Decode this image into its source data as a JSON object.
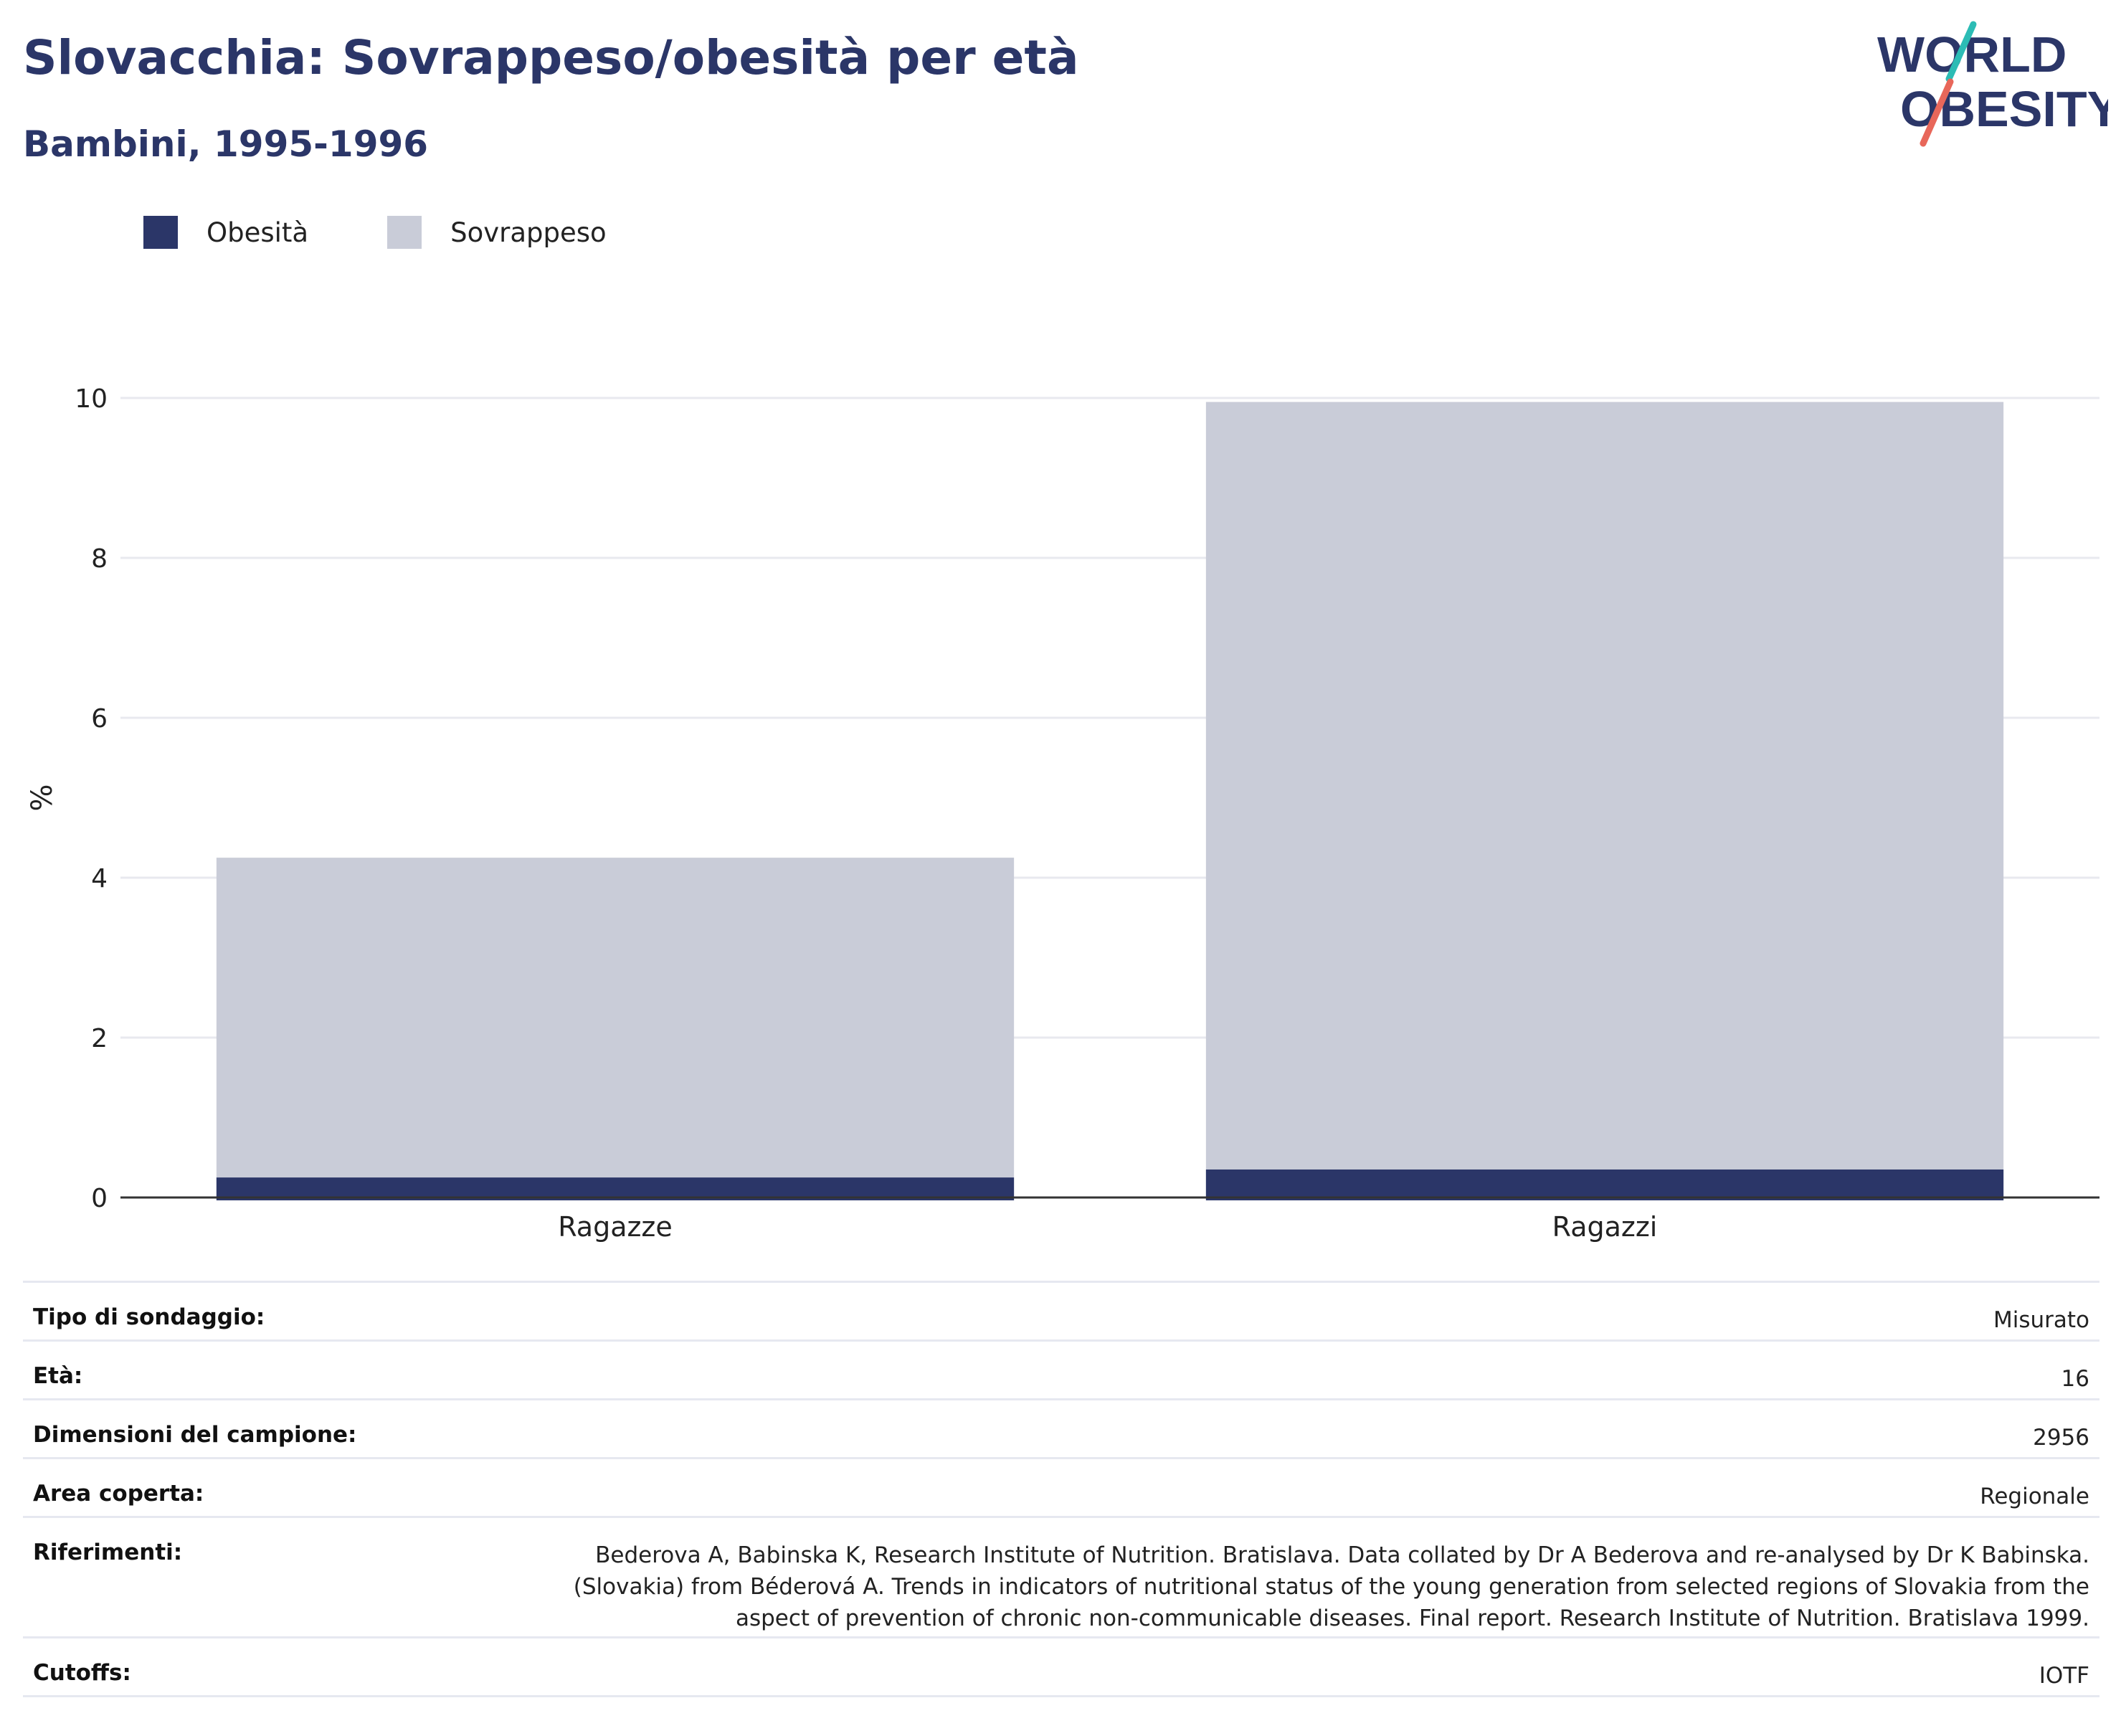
{
  "header": {
    "title": "Slovacchia: Sovrappeso/obesità per età",
    "subtitle": "Bambini, 1995-1996"
  },
  "logo": {
    "line1": "WORLD",
    "line2": "OBESITY",
    "accent_teal": "#2cbcb5",
    "accent_red": "#e8675a",
    "color": "#2b3668"
  },
  "legend": {
    "items": [
      {
        "label": "Obesità",
        "color": "#2b3668"
      },
      {
        "label": "Sovrappeso",
        "color": "#c9ccd8"
      }
    ]
  },
  "chart_data": {
    "type": "bar",
    "stacked": false,
    "categories": [
      "Ragazze",
      "Ragazzi"
    ],
    "series": [
      {
        "name": "Sovrappeso",
        "color": "#c9ccd8",
        "values": [
          4.25,
          9.95
        ]
      },
      {
        "name": "Obesità",
        "color": "#2b3668",
        "values": [
          0.25,
          0.35
        ]
      }
    ],
    "ylabel": "%",
    "ylim": [
      0,
      10
    ],
    "yticks": [
      0,
      2,
      4,
      6,
      8,
      10
    ],
    "grid": true,
    "legend_position": "top-left"
  },
  "info": {
    "rows": [
      {
        "key": "Tipo di sondaggio:",
        "value": "Misurato"
      },
      {
        "key": "Età:",
        "value": "16"
      },
      {
        "key": "Dimensioni del campione:",
        "value": "2956"
      },
      {
        "key": "Area coperta:",
        "value": "Regionale"
      },
      {
        "key": "Riferimenti:",
        "value_lines": [
          "Bederova A, Babinska K, Research Institute of Nutrition. Bratislava. Data collated by Dr A Bederova and re-analysed by Dr K Babinska.",
          "(Slovakia) from Béderová A. Trends in indicators of nutritional status of the young generation from selected regions of Slovakia from the",
          "aspect of prevention of chronic non-communicable diseases. Final report. Research Institute of Nutrition. Bratislava 1999."
        ]
      },
      {
        "key": "Cutoffs:",
        "value": "IOTF"
      }
    ]
  }
}
